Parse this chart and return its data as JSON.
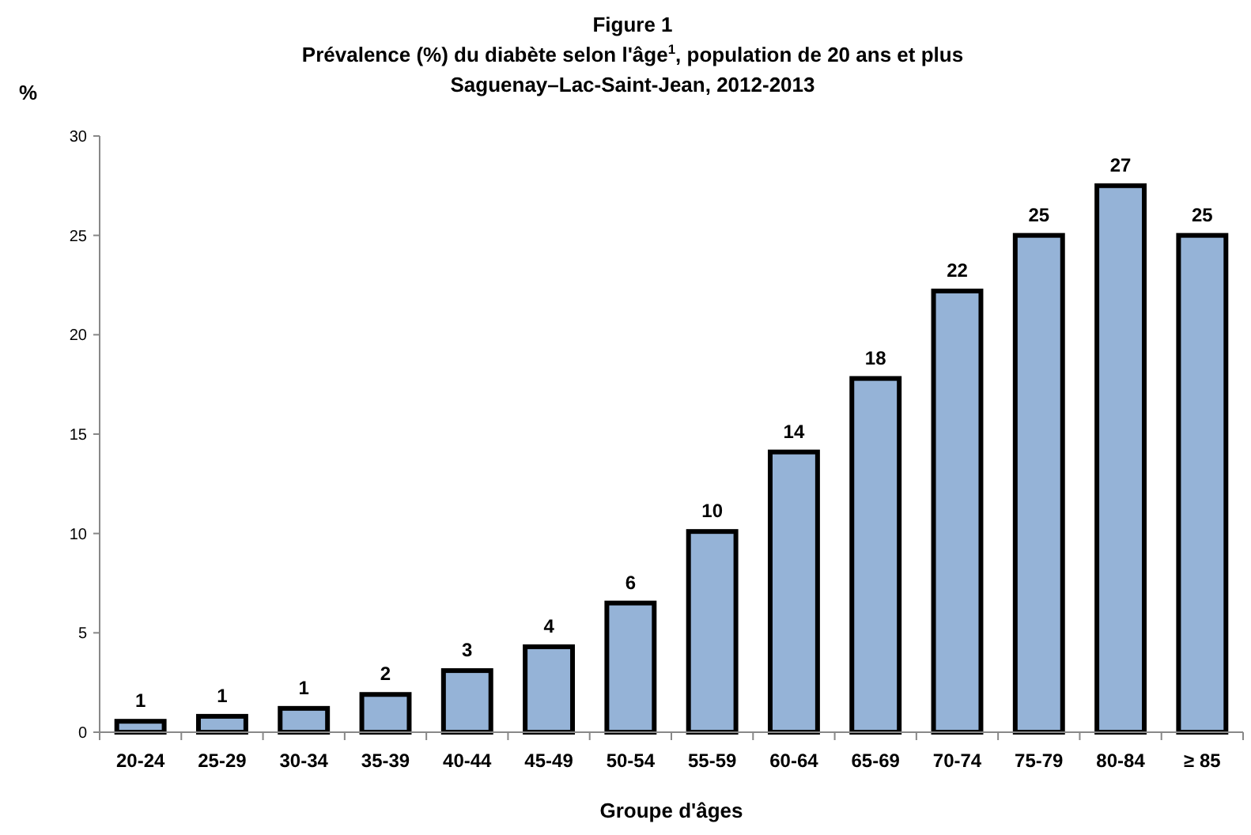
{
  "chart_data": {
    "type": "bar",
    "title": "Figure 1",
    "subtitle": "Prévalence (%) du diabète selon l'âge$^{1}$, population de 20 ans et plus\nSaguenay–Lac-Saint-Jean, 2012-2013",
    "xlabel": "Groupe d'âges",
    "ylabel": "%",
    "categories": [
      "20-24",
      "25-29",
      "30-34",
      "35-39",
      "40-44",
      "45-49",
      "50-54",
      "55-59",
      "60-64",
      "65-69",
      "70-74",
      "75-79",
      "80-84",
      "≥ 85"
    ],
    "values": [
      0.55,
      0.8,
      1.2,
      1.9,
      3.1,
      4.3,
      6.5,
      10.1,
      14.1,
      17.8,
      22.2,
      25.0,
      27.5,
      25.0
    ],
    "value_labels": [
      "1",
      "1",
      "1",
      "2",
      "3",
      "4",
      "6",
      "10",
      "14",
      "18",
      "22",
      "25",
      "27",
      "25"
    ],
    "color": "#95b3d7",
    "ylim": [
      0,
      30
    ],
    "yticks": [
      0,
      5,
      10,
      15,
      20,
      25,
      30
    ],
    "grid": false
  }
}
